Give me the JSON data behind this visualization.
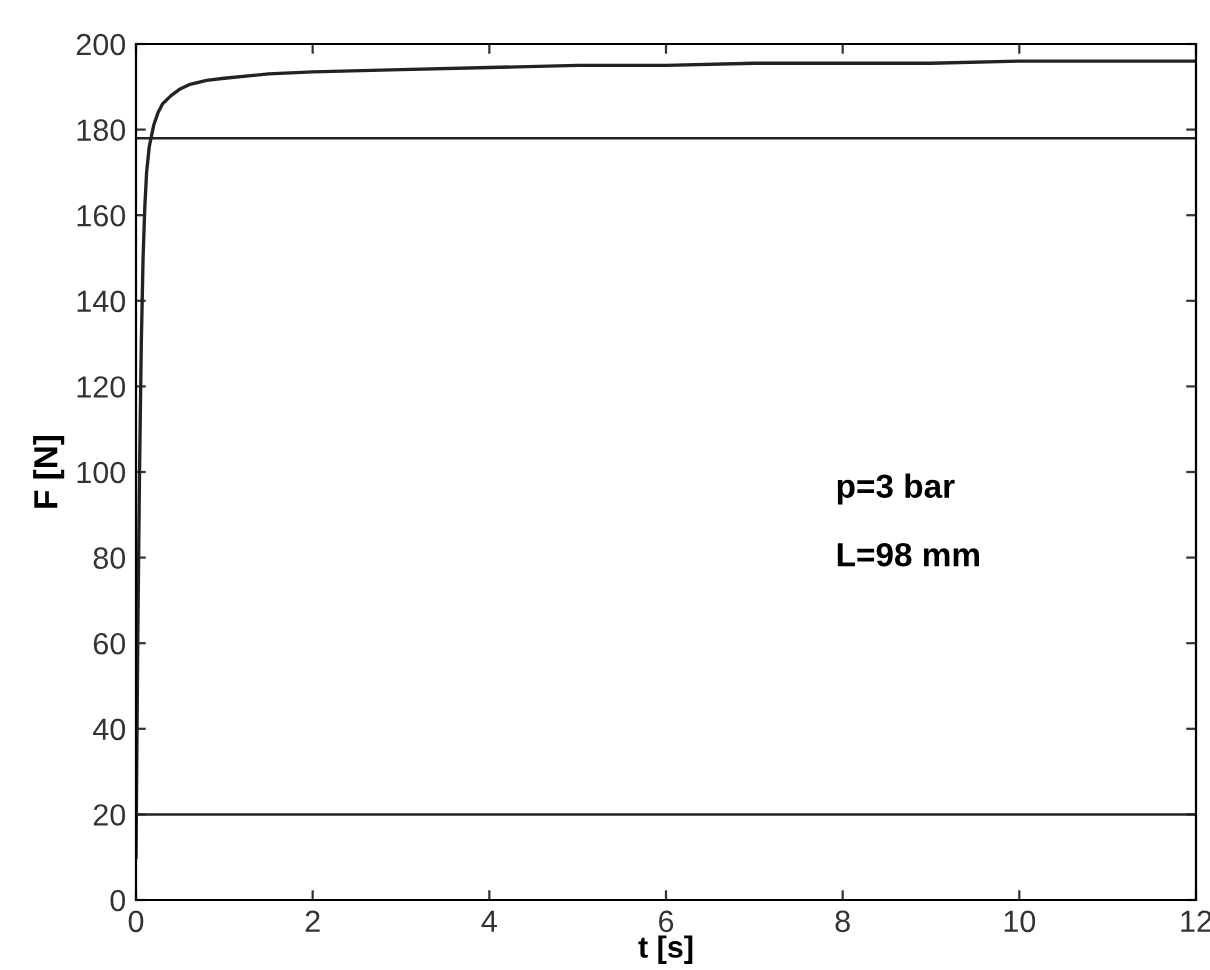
{
  "chart_data": {
    "type": "line",
    "xlabel": "t [s]",
    "ylabel": "F [N]",
    "x": [
      0,
      0.02,
      0.04,
      0.06,
      0.08,
      0.1,
      0.12,
      0.15,
      0.2,
      0.25,
      0.3,
      0.4,
      0.5,
      0.6,
      0.8,
      1.0,
      1.5,
      2.0,
      3.0,
      4.0,
      5.0,
      6.0,
      7.0,
      8.0,
      9.0,
      10.0,
      11.0,
      12.0
    ],
    "series": [
      {
        "color": "#222222",
        "values": [
          10,
          60,
          100,
          130,
          150,
          162,
          170,
          176,
          181,
          184,
          186,
          188,
          189.5,
          190.5,
          191.5,
          192,
          193,
          193.5,
          194,
          194.5,
          195,
          195,
          195.5,
          195.5,
          195.5,
          196,
          196,
          196
        ]
      }
    ],
    "ref_lines": [
      {
        "axis": "y",
        "value": 178,
        "color": "#222222"
      },
      {
        "axis": "y",
        "value": 20,
        "color": "#222222"
      }
    ],
    "annotations": [
      "p=3 bar",
      "L=98 mm"
    ],
    "xlim": [
      0,
      12
    ],
    "ylim": [
      0,
      200
    ],
    "xticks": [
      0,
      2,
      4,
      6,
      8,
      10,
      12
    ],
    "yticks": [
      0,
      20,
      40,
      60,
      80,
      100,
      120,
      140,
      160,
      180,
      200
    ],
    "grid": false,
    "legend": false,
    "line_style": "solid",
    "marker": "none"
  }
}
